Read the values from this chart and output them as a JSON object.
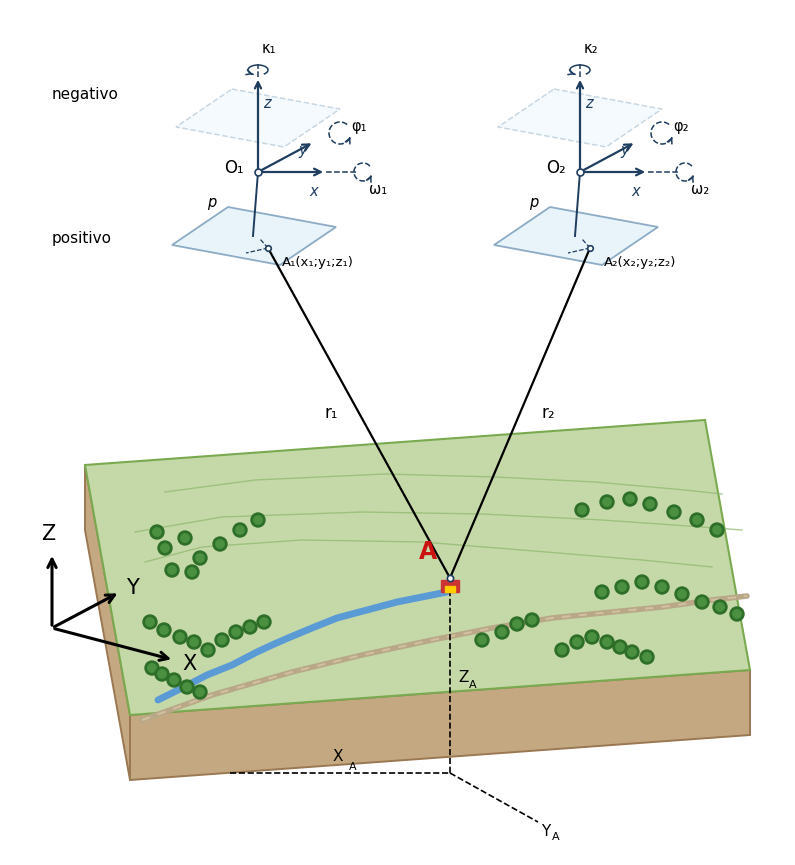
{
  "bg_color": "#ffffff",
  "dark_blue": "#1e3d5f",
  "plate_fill": "#daeef8",
  "plate_edge": "#4878a0",
  "terrain_green": "#c5d9a8",
  "terrain_brown": "#c4a882",
  "terrain_edge": "#9a7852",
  "water_blue": "#5b9bd5",
  "road_color": "#b8a888",
  "tree_dark": "#2d6e28",
  "tree_light": "#4a9040",
  "red_A": "#cc1111",
  "building_red": "#cc3333",
  "building_yellow": "#ffcc00",
  "contour_color": "#90b870",
  "text_black": "#000000",
  "sub1": "₁",
  "sub2": "₂",
  "kappa": "κ",
  "phi": "φ",
  "omega": "ω",
  "label_negativo": "negativo",
  "label_positivo": "positivo"
}
